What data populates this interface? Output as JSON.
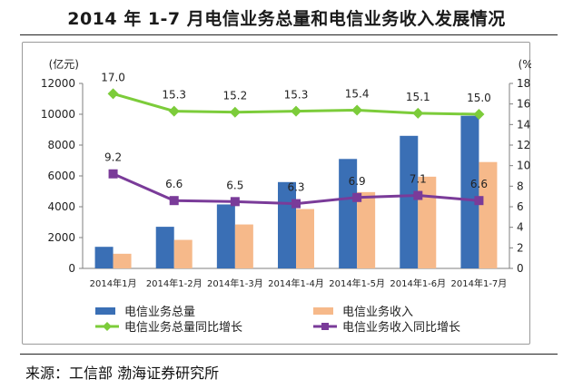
{
  "page": {
    "title": "2014 年 1-7 月电信业务总量和电信业务收入发展情况",
    "source": "来源：工信部 渤海证券研究所"
  },
  "colors": {
    "bar_total": "#3a6fb5",
    "bar_revenue": "#f6b98a",
    "line_total": "#7ccc3a",
    "line_revenue": "#7a3b99"
  },
  "chart_data": {
    "type": "bar",
    "categories": [
      "2014年1月",
      "2014年1-2月",
      "2014年1-3月",
      "2014年1-4月",
      "2014年1-5月",
      "2014年1-6月",
      "2014年1-7月"
    ],
    "left_axis": {
      "unit": "(亿元)",
      "ylim": [
        0,
        12000
      ],
      "ticks": [
        0,
        2000,
        4000,
        6000,
        8000,
        10000,
        12000
      ]
    },
    "right_axis": {
      "unit": "(%)",
      "ylim": [
        0,
        18
      ],
      "ticks": [
        0,
        2,
        4,
        6,
        8,
        10,
        12,
        14,
        16,
        18
      ]
    },
    "series": [
      {
        "name": "电信业务总量",
        "kind": "bar",
        "axis": "left",
        "color": "#3a6fb5",
        "values": [
          1400,
          2700,
          4150,
          5600,
          7100,
          8600,
          9900
        ]
      },
      {
        "name": "电信业务收入",
        "kind": "bar",
        "axis": "left",
        "color": "#f6b98a",
        "values": [
          950,
          1850,
          2850,
          3850,
          4950,
          5950,
          6900
        ]
      },
      {
        "name": "电信业务总量同比增长",
        "kind": "line",
        "axis": "right",
        "color": "#7ccc3a",
        "values": [
          17.0,
          15.3,
          15.2,
          15.3,
          15.4,
          15.1,
          15.0
        ],
        "labels": [
          "17.0",
          "15.3",
          "15.2",
          "15.3",
          "15.4",
          "15.1",
          "15.0"
        ]
      },
      {
        "name": "电信业务收入同比增长",
        "kind": "line",
        "axis": "right",
        "color": "#7a3b99",
        "values": [
          9.2,
          6.6,
          6.5,
          6.3,
          6.9,
          7.1,
          6.6
        ],
        "labels": [
          "9.2",
          "6.6",
          "6.5",
          "6.3",
          "6.9",
          "7.1",
          "6.6"
        ]
      }
    ],
    "grid": false,
    "legend_position": "bottom"
  }
}
